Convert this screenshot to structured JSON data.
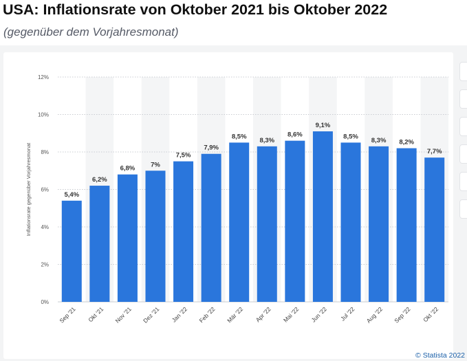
{
  "header": {
    "title": "USA: Inflationsrate von Oktober 2021 bis Oktober 2022",
    "subtitle": "(gegenüber dem Vorjahresmonat)"
  },
  "footer": {
    "copyright": "© Statista 2022"
  },
  "colors": {
    "bar": "#2a76dc",
    "alt_band": "#f4f5f6",
    "grid": "#c9ccd1"
  },
  "chart_data": {
    "type": "bar",
    "title": "USA: Inflationsrate von Oktober 2021 bis Oktober 2022",
    "subtitle": "(gegenüber dem Vorjahresmonat)",
    "ylabel": "Inflationsrate gegenüber Vorjahresmonat",
    "xlabel": "",
    "ylim": [
      0,
      12
    ],
    "yticks": [
      0,
      2,
      4,
      6,
      8,
      10,
      12
    ],
    "ytick_labels": [
      "0%",
      "2%",
      "4%",
      "6%",
      "8%",
      "10%",
      "12%"
    ],
    "categories": [
      "Sep '21",
      "Okt '21",
      "Nov '21",
      "Dez '21",
      "Jan '22",
      "Feb '22",
      "Mär '22",
      "Apr '22",
      "Mai '22",
      "Jun '22",
      "Jul '22",
      "Aug '22",
      "Sep '22",
      "Okt '22"
    ],
    "values": [
      5.4,
      6.2,
      6.8,
      7.0,
      7.5,
      7.9,
      8.5,
      8.3,
      8.6,
      9.1,
      8.5,
      8.3,
      8.2,
      7.7
    ],
    "data_labels": [
      "5,4%",
      "6,2%",
      "6,8%",
      "7%",
      "7,5%",
      "7,9%",
      "8,5%",
      "8,3%",
      "8,6%",
      "9,1%",
      "8,5%",
      "8,3%",
      "8,2%",
      "7,7%"
    ],
    "grid": true,
    "legend": "none"
  }
}
